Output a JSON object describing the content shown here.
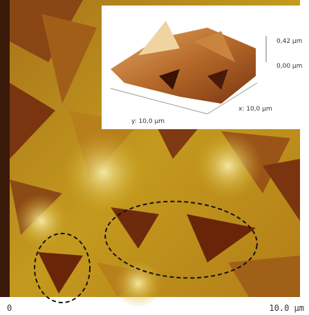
{
  "scale_bar": {
    "start": "0",
    "end": "10.0 µm"
  },
  "inset": {
    "z_max": "0,42 µm",
    "z_min": "0,00 µm",
    "y_axis": "y: 10,0 µm",
    "x_axis": "x: 10,0 µm"
  }
}
